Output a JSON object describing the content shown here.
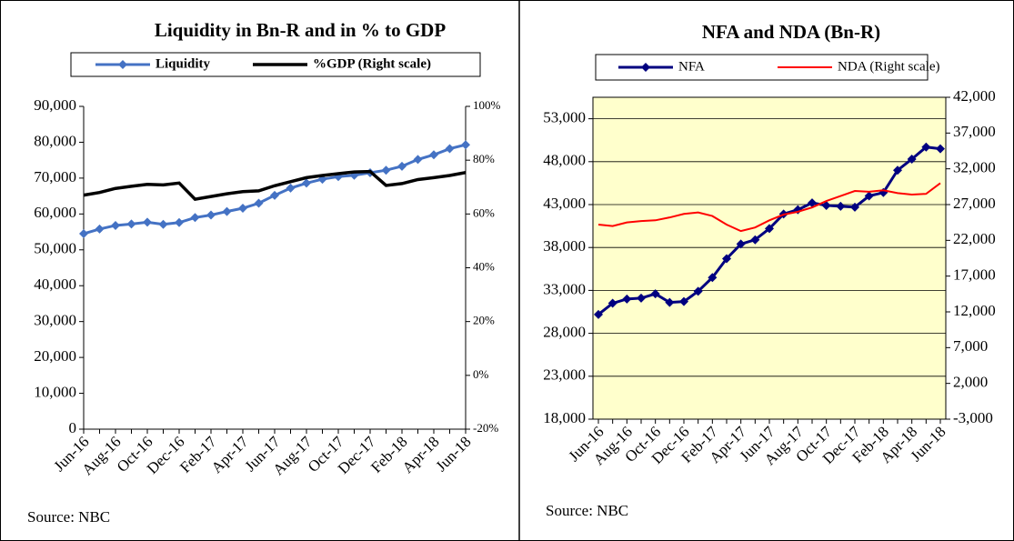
{
  "chart_data": [
    {
      "type": "line",
      "title": "Liquidity  in Bn-R  and  in % to GDP",
      "source": "Source: NBC",
      "categories": [
        "Jun-16",
        null,
        "Aug-16",
        null,
        "Oct-16",
        null,
        "Dec-16",
        null,
        "Feb-17",
        null,
        "Apr-17",
        null,
        "Jun-17",
        null,
        "Aug-17",
        null,
        "Oct-17",
        null,
        "Dec-17",
        null,
        "Feb-18",
        null,
        "Apr-18",
        null,
        "Jun-18"
      ],
      "series": [
        {
          "name": "Liquidity",
          "color": "#4472c4",
          "marker": "diamond",
          "values": [
            54500,
            55800,
            56800,
            57200,
            57700,
            57100,
            57600,
            59000,
            59700,
            60700,
            61600,
            63000,
            65200,
            67200,
            68600,
            69700,
            70400,
            70800,
            71500,
            72200,
            73300,
            75200,
            76500,
            78200,
            79300
          ]
        },
        {
          "name": "%GDP (Right scale)",
          "color": "#000000",
          "axis": "y2",
          "values": [
            67,
            68,
            69.5,
            70.3,
            71,
            70.8,
            71.5,
            65.5,
            66.5,
            67.5,
            68.3,
            68.6,
            70.5,
            72,
            73.5,
            74.3,
            75,
            75.6,
            75.8,
            70.6,
            71.3,
            72.8,
            73.5,
            74.3,
            75.4
          ]
        }
      ],
      "ylim": [
        0,
        90000
      ],
      "yticks": [
        0,
        {
          "value": 10000,
          "label": "10,000"
        },
        {
          "value": 20000,
          "label": "20,000"
        },
        {
          "value": 30000,
          "label": "30,000"
        },
        {
          "value": 40000,
          "label": "40,000"
        },
        {
          "value": 50000,
          "label": "50,000"
        },
        {
          "value": 60000,
          "label": "60,000"
        },
        {
          "value": 70000,
          "label": "70,000"
        },
        {
          "value": 80000,
          "label": "80,000"
        },
        {
          "value": 90000,
          "label": "90,000"
        }
      ],
      "y2lim": [
        -20,
        100
      ],
      "y2ticks": [
        {
          "value": -20,
          "label": "-20%"
        },
        {
          "value": 0,
          "label": "0%"
        },
        {
          "value": 20,
          "label": "20%"
        },
        {
          "value": 40,
          "label": "40%"
        },
        {
          "value": 60,
          "label": "60%"
        },
        {
          "value": 80,
          "label": "80%"
        },
        {
          "value": 100,
          "label": "100%"
        }
      ],
      "grid": false
    },
    {
      "type": "line",
      "title": "NFA and NDA (Bn-R)",
      "source": "Source: NBC",
      "categories": [
        "Jun-16",
        null,
        "Aug-16",
        null,
        "Oct-16",
        null,
        "Dec-16",
        null,
        "Feb-17",
        null,
        "Apr-17",
        null,
        "Jun-17",
        null,
        "Aug-17",
        null,
        "Oct-17",
        null,
        "Dec-17",
        null,
        "Feb-18",
        null,
        "Apr-18",
        null,
        "Jun-18"
      ],
      "series": [
        {
          "name": "NFA",
          "color": "#000080",
          "marker": "diamond",
          "values": [
            30200,
            31500,
            32000,
            32100,
            32600,
            31600,
            31700,
            32900,
            34500,
            36700,
            38400,
            38900,
            40200,
            41900,
            42400,
            43200,
            42900,
            42800,
            42700,
            44000,
            44400,
            47000,
            48300,
            49700,
            49500
          ]
        },
        {
          "name": "NDA (Right scale)",
          "color": "#ff0000",
          "axis": "y2",
          "values": [
            24200,
            24000,
            24500,
            24700,
            24800,
            25200,
            25700,
            25900,
            25400,
            24200,
            23300,
            23800,
            24800,
            25600,
            26000,
            26600,
            27500,
            28200,
            28900,
            28800,
            29000,
            28600,
            28400,
            28500,
            30000
          ]
        }
      ],
      "ylim": [
        18000,
        55500
      ],
      "yticks": [
        {
          "value": 18000,
          "label": "18,000"
        },
        {
          "value": 23000,
          "label": "23,000"
        },
        {
          "value": 28000,
          "label": "28,000"
        },
        {
          "value": 33000,
          "label": "33,000"
        },
        {
          "value": 38000,
          "label": "38,000"
        },
        {
          "value": 43000,
          "label": "43,000"
        },
        {
          "value": 48000,
          "label": "48,000"
        },
        {
          "value": 53000,
          "label": "53,000"
        }
      ],
      "y2lim": [
        -3000,
        42000
      ],
      "y2ticks": [
        {
          "value": -3000,
          "label": "-3,000"
        },
        {
          "value": 2000,
          "label": "2,000"
        },
        {
          "value": 7000,
          "label": "7,000"
        },
        {
          "value": 12000,
          "label": "12,000"
        },
        {
          "value": 17000,
          "label": "17,000"
        },
        {
          "value": 22000,
          "label": "22,000"
        },
        {
          "value": 27000,
          "label": "27,000"
        },
        {
          "value": 32000,
          "label": "32,000"
        },
        {
          "value": 37000,
          "label": "37,000"
        },
        {
          "value": 42000,
          "label": "42,000"
        }
      ],
      "grid": true,
      "plot_background": "#ffffcc"
    }
  ]
}
